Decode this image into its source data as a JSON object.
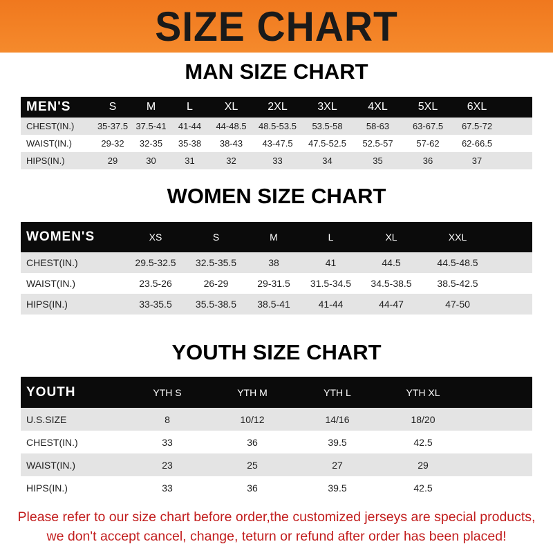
{
  "title": "SIZE CHART",
  "men": {
    "heading": "MAN SIZE CHART",
    "header": [
      "MEN'S",
      "S",
      "M",
      "L",
      "XL",
      "2XL",
      "3XL",
      "4XL",
      "5XL",
      "6XL"
    ],
    "rows": [
      [
        "CHEST(IN.)",
        "35-37.5",
        "37.5-41",
        "41-44",
        "44-48.5",
        "48.5-53.5",
        "53.5-58",
        "58-63",
        "63-67.5",
        "67.5-72"
      ],
      [
        "WAIST(IN.)",
        "29-32",
        "32-35",
        "35-38",
        "38-43",
        "43-47.5",
        "47.5-52.5",
        "52.5-57",
        "57-62",
        "62-66.5"
      ],
      [
        "HIPS(IN.)",
        "29",
        "30",
        "31",
        "32",
        "33",
        "34",
        "35",
        "36",
        "37"
      ]
    ]
  },
  "women": {
    "heading": "WOMEN SIZE CHART",
    "header": [
      "WOMEN'S",
      "XS",
      "S",
      "M",
      "L",
      "XL",
      "XXL"
    ],
    "rows": [
      [
        "CHEST(IN.)",
        "29.5-32.5",
        "32.5-35.5",
        "38",
        "41",
        "44.5",
        "44.5-48.5"
      ],
      [
        "WAIST(IN.)",
        "23.5-26",
        "26-29",
        "29-31.5",
        "31.5-34.5",
        "34.5-38.5",
        "38.5-42.5"
      ],
      [
        "HIPS(IN.)",
        "33-35.5",
        "35.5-38.5",
        "38.5-41",
        "41-44",
        "44-47",
        "47-50"
      ]
    ]
  },
  "youth": {
    "heading": "YOUTH SIZE CHART",
    "header": [
      "YOUTH",
      "YTH S",
      "YTH M",
      "YTH L",
      "YTH XL"
    ],
    "rows": [
      [
        "U.S.SIZE",
        "8",
        "10/12",
        "14/16",
        "18/20"
      ],
      [
        "CHEST(IN.)",
        "33",
        "36",
        "39.5",
        "42.5"
      ],
      [
        "WAIST(IN.)",
        "23",
        "25",
        "27",
        "29"
      ],
      [
        "HIPS(IN.)",
        "33",
        "36",
        "39.5",
        "42.5"
      ]
    ]
  },
  "note": {
    "line1": "Please refer to our size chart before order,the customized jerseys are special products,",
    "line2": "we don't accept cancel, change, teturn or refund after order has been placed!"
  },
  "colors": {
    "banner": "#f0781e",
    "header_row": "#0b0b0b",
    "alt_row": "#e4e4e4",
    "note": "#c21d1d"
  }
}
